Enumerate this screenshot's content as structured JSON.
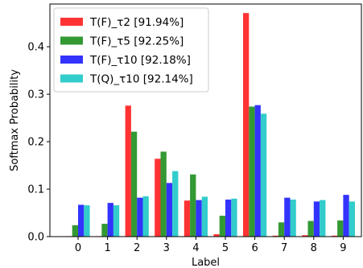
{
  "chart_data": {
    "type": "bar",
    "xlabel": "Label",
    "ylabel": "Softmax Probability",
    "categories": [
      "0",
      "1",
      "2",
      "3",
      "4",
      "5",
      "6",
      "7",
      "8",
      "9"
    ],
    "ylim": [
      0,
      0.49
    ],
    "yticks": [
      0.0,
      0.1,
      0.2,
      0.3,
      0.4
    ],
    "ytick_labels": [
      "0.0",
      "0.1",
      "0.2",
      "0.3",
      "0.4"
    ],
    "legend_position": "top-left",
    "grid": false,
    "series": [
      {
        "name": "T(F)_τ2 [91.94%]",
        "color": "#ff3333",
        "values": [
          0.001,
          0.001,
          0.276,
          0.164,
          0.076,
          0.005,
          0.471,
          0.002,
          0.003,
          0.002
        ]
      },
      {
        "name": "T(F)_τ5 [92.25%]",
        "color": "#339933",
        "values": [
          0.024,
          0.027,
          0.221,
          0.179,
          0.131,
          0.044,
          0.274,
          0.03,
          0.033,
          0.034
        ]
      },
      {
        "name": "T(F)_τ10 [92.18%]",
        "color": "#3333ff",
        "values": [
          0.067,
          0.071,
          0.082,
          0.113,
          0.077,
          0.078,
          0.277,
          0.082,
          0.074,
          0.088
        ]
      },
      {
        "name": "T(Q)_τ10 [92.14%]",
        "color": "#33cccc",
        "values": [
          0.066,
          0.066,
          0.085,
          0.138,
          0.084,
          0.08,
          0.259,
          0.078,
          0.077,
          0.074
        ]
      }
    ]
  }
}
